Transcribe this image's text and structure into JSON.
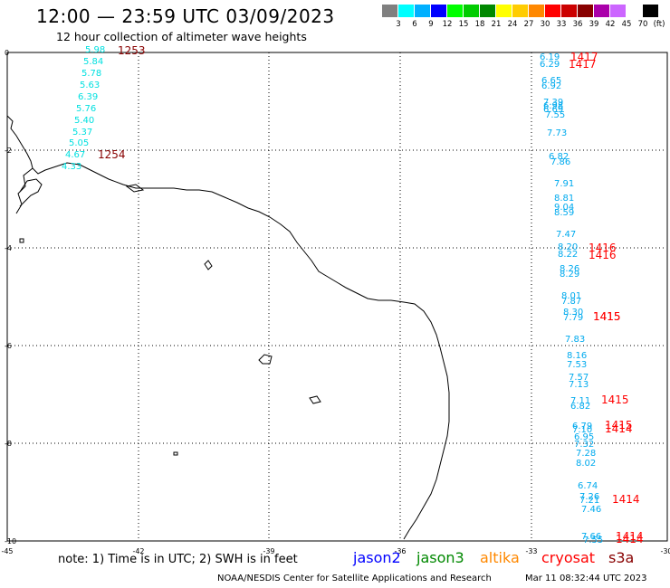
{
  "title": "12:00 — 23:59 UTC 03/09/2023",
  "subtitle": "12 hour collection of altimeter wave heights",
  "scale": {
    "colors": [
      "#808080",
      "#00ffff",
      "#00b0ff",
      "#0000ff",
      "#00ff00",
      "#00cc00",
      "#008800",
      "#ffff00",
      "#ffcc00",
      "#ff8800",
      "#ff0000",
      "#cc0000",
      "#880000",
      "#aa00aa",
      "#cc66ff",
      "#ffffff",
      "#000000"
    ],
    "labels": [
      "3",
      "6",
      "9",
      "12",
      "15",
      "18",
      "21",
      "24",
      "27",
      "30",
      "33",
      "36",
      "39",
      "42",
      "45",
      "70",
      "(ft)"
    ]
  },
  "axes": {
    "x_ticks": [
      "-45",
      "-42",
      "-39",
      "-36",
      "-33",
      "-30"
    ],
    "y_ticks": [
      "0",
      "-2",
      "-4",
      "-6",
      "-8",
      "-10"
    ]
  },
  "wave_heights": {
    "track_west": [
      "5.98",
      "5.84",
      "5.78",
      "5.63",
      "6.39",
      "5.76",
      "5.40",
      "5.37",
      "5.05",
      "4.67",
      "4.33"
    ],
    "track_east": [
      "6.19",
      "6.29",
      "6.65",
      "6.92",
      "7.39",
      "6.98",
      "6.69",
      "7.55",
      "7.73",
      "6.82",
      "7.86",
      "7.91",
      "8.81",
      "9.04",
      "8.59",
      "7.47",
      "8.20",
      "8.22",
      "8.26",
      "8.29",
      "8.01",
      "7.87",
      "8.30",
      "7.79",
      "7.83",
      "8.16",
      "7.53",
      "7.57",
      "7.13",
      "7.11",
      "6.82",
      "6.79",
      "7.10",
      "6.95",
      "7.32",
      "7.28",
      "8.02",
      "6.74",
      "7.26",
      "7.21",
      "7.46",
      "7.66",
      "7.55"
    ]
  },
  "times": {
    "west": [
      "1253",
      "1254"
    ],
    "east": [
      "1417",
      "1417",
      "1416",
      "1416",
      "1415",
      "1415",
      "1415",
      "1415",
      "1414",
      "1414",
      "1414",
      "1414"
    ]
  },
  "note": "note: 1) Time is in UTC; 2) SWH is in feet",
  "satellites": [
    {
      "name": "jason2",
      "color": "#0000ff"
    },
    {
      "name": "jason3",
      "color": "#008800"
    },
    {
      "name": "altika",
      "color": "#ff8800"
    },
    {
      "name": "cryosat",
      "color": "#ff0000"
    },
    {
      "name": "s3a",
      "color": "#880000"
    }
  ],
  "credit": "NOAA/NESDIS Center for Satellite Applications and Research",
  "timestamp": "Mar 11 08:32:44 UTC 2023"
}
